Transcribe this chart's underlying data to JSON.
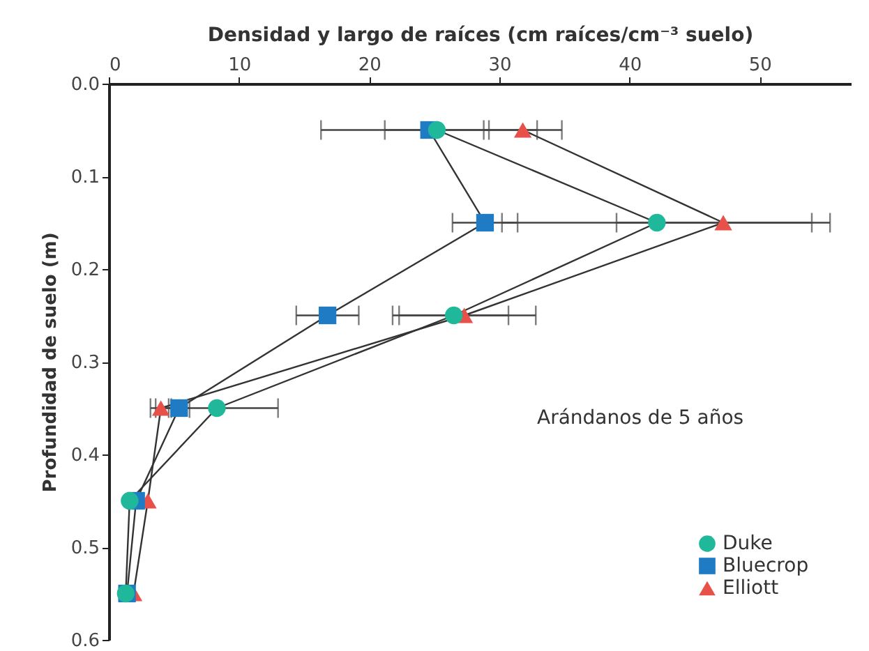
{
  "chart_data": {
    "type": "line",
    "xlabel": "Densidad y largo de raíces (cm raíces/cm⁻³ suelo)",
    "ylabel": "Profundidad de suelo (m)",
    "series": [
      {
        "name": "Duke",
        "color": "#1fb89a",
        "marker": "circle",
        "x": [
          25.2,
          42.1,
          26.5,
          8.3,
          1.6,
          1.3
        ],
        "values": [
          0.05,
          0.15,
          0.25,
          0.35,
          0.45,
          0.55
        ],
        "xerrors": [
          4,
          11.9,
          4.2,
          4.7,
          null,
          null
        ]
      },
      {
        "name": "Bluecrop",
        "color": "#1e7bc4",
        "marker": "square",
        "x": [
          24.6,
          28.9,
          16.8,
          5.4,
          2.1,
          1.4
        ],
        "values": [
          0.05,
          0.15,
          0.25,
          0.35,
          0.45,
          0.55
        ],
        "xerrors": [
          8.3,
          2.5,
          2.4,
          0.8,
          null,
          null
        ]
      },
      {
        "name": "Elliott",
        "color": "#e8504a",
        "marker": "triangle",
        "x": [
          31.8,
          47.2,
          27.3,
          4.0,
          3.0,
          1.9
        ],
        "values": [
          0.05,
          0.15,
          0.25,
          0.35,
          0.45,
          0.55
        ],
        "xerrors": [
          3,
          8.2,
          5.5,
          0.8,
          null,
          null
        ]
      }
    ],
    "xlim": [
      0,
      57
    ],
    "xticks": [
      0,
      10,
      20,
      30,
      40,
      50
    ],
    "ylim": [
      0.6,
      0
    ],
    "yticks": [
      {
        "value": 0,
        "label": "0.0"
      },
      0.1,
      0.2,
      0.3,
      0.4,
      0.5,
      0.6
    ],
    "legend": "bottom right",
    "annotations": [
      "Arándanos de 5 años"
    ]
  }
}
